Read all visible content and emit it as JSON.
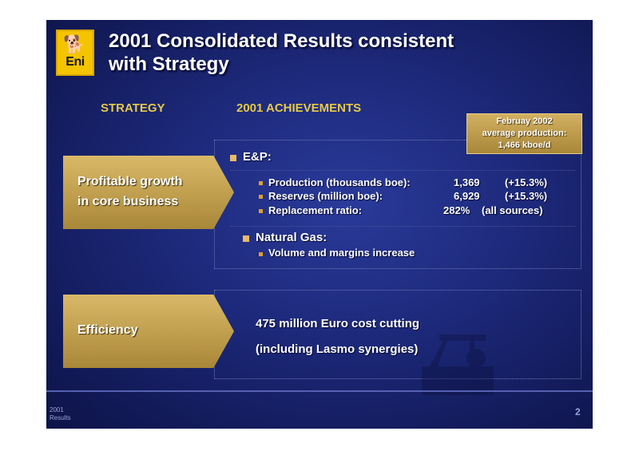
{
  "logo": {
    "brand": "Eni",
    "icon": "six-legged-dog-icon"
  },
  "title": {
    "line1": "2001 Consolidated Results consistent",
    "line2": "with Strategy"
  },
  "columns": {
    "strategy": "STRATEGY",
    "achievements": "2001 ACHIEVEMENTS"
  },
  "highlight_box": {
    "line1": "Februay 2002",
    "line2": "average production:",
    "line3": "1,466 kboe/d"
  },
  "strategies": [
    {
      "line1": "Profitable growth",
      "line2": "in core business"
    },
    {
      "line1": "Efficiency"
    }
  ],
  "ep": {
    "heading": "E&P:",
    "rows": [
      {
        "label": "Production (thousands boe):",
        "value": "1,369",
        "change": "(+15.3%)"
      },
      {
        "label": "Reserves (million boe):",
        "value": "6,929",
        "change": "(+15.3%)"
      },
      {
        "label": "Replacement ratio:",
        "value": "282%",
        "change": "(all sources)"
      }
    ]
  },
  "gas": {
    "heading": "Natural Gas:",
    "item": "Volume and margins increase"
  },
  "efficiency": {
    "line1": "475 million Euro cost cutting",
    "line2": "(including Lasmo synergies)"
  },
  "footer": {
    "line1": "2001",
    "line2": "Results",
    "page": "2"
  },
  "colors": {
    "background": "#1c2878",
    "gold": "#e5c94a",
    "arrow": "#c4a14d",
    "bullet": "#e8b86a"
  }
}
